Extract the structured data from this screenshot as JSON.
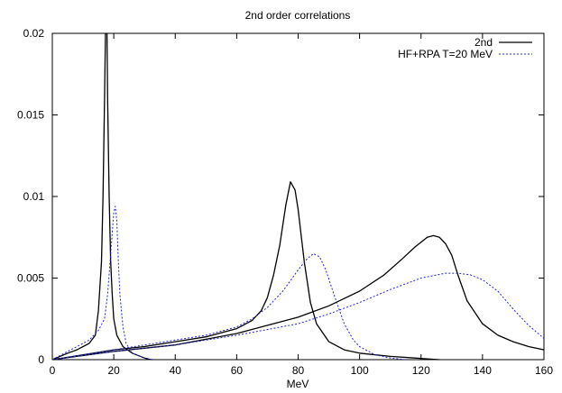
{
  "chart_data": {
    "type": "line",
    "title": "2nd order correlations",
    "xlabel": "MeV",
    "ylabel": "",
    "xlim": [
      0,
      160
    ],
    "ylim": [
      0,
      0.02
    ],
    "x_ticks": [
      0,
      20,
      40,
      60,
      80,
      100,
      120,
      140,
      160
    ],
    "y_ticks": [
      0,
      0.005,
      0.01,
      0.015,
      0.02
    ],
    "y_tick_labels": [
      "0",
      "0.005",
      "0.01",
      "0.015",
      "0.02"
    ],
    "grid": false,
    "legend_position": "top-right",
    "series": [
      {
        "name": "2nd",
        "color": "#000000",
        "style": "solid",
        "curves": [
          [
            [
              0,
              0
            ],
            [
              5,
              0.0004
            ],
            [
              8,
              0.0006
            ],
            [
              12,
              0.001
            ],
            [
              14,
              0.0015
            ],
            [
              15,
              0.003
            ],
            [
              16,
              0.006
            ],
            [
              16.5,
              0.01
            ],
            [
              17,
              0.016
            ],
            [
              17.3,
              0.02
            ],
            [
              17.8,
              0.02
            ],
            [
              18,
              0.016
            ],
            [
              18.5,
              0.01
            ],
            [
              19,
              0.006
            ],
            [
              19.5,
              0.004
            ],
            [
              20,
              0.0025
            ],
            [
              21,
              0.0015
            ],
            [
              23,
              0.0008
            ],
            [
              26,
              0.0004
            ],
            [
              30,
              0.0001
            ],
            [
              32,
              0
            ]
          ],
          [
            [
              0,
              0
            ],
            [
              10,
              0.0003
            ],
            [
              20,
              0.0006
            ],
            [
              30,
              0.0008
            ],
            [
              40,
              0.0011
            ],
            [
              50,
              0.0014
            ],
            [
              60,
              0.0019
            ],
            [
              65,
              0.0024
            ],
            [
              68,
              0.003
            ],
            [
              70,
              0.0038
            ],
            [
              72,
              0.0052
            ],
            [
              74,
              0.007
            ],
            [
              76,
              0.0095
            ],
            [
              77.5,
              0.0109
            ],
            [
              79,
              0.0104
            ],
            [
              80,
              0.0092
            ],
            [
              82,
              0.006
            ],
            [
              84,
              0.0035
            ],
            [
              86,
              0.0022
            ],
            [
              90,
              0.0011
            ],
            [
              95,
              0.0006
            ],
            [
              100,
              0.0004
            ],
            [
              110,
              0.0002
            ],
            [
              118,
              0.0001
            ],
            [
              122,
              5e-05
            ],
            [
              126,
              0
            ]
          ],
          [
            [
              0,
              0
            ],
            [
              20,
              0.0005
            ],
            [
              40,
              0.0009
            ],
            [
              60,
              0.0016
            ],
            [
              80,
              0.0026
            ],
            [
              90,
              0.0033
            ],
            [
              100,
              0.0042
            ],
            [
              108,
              0.0052
            ],
            [
              114,
              0.0062
            ],
            [
              118,
              0.0069
            ],
            [
              122,
              0.0075
            ],
            [
              124,
              0.0076
            ],
            [
              126,
              0.0075
            ],
            [
              128,
              0.0071
            ],
            [
              130,
              0.0064
            ],
            [
              132,
              0.0052
            ],
            [
              135,
              0.0036
            ],
            [
              140,
              0.0022
            ],
            [
              145,
              0.0015
            ],
            [
              150,
              0.0011
            ],
            [
              155,
              0.0008
            ],
            [
              160,
              0.0006
            ]
          ]
        ]
      },
      {
        "name": "HF+RPA T=20 MeV",
        "color": "#2323d6",
        "style": "dotted",
        "curves": [
          [
            [
              0,
              0
            ],
            [
              5,
              0.0005
            ],
            [
              8,
              0.0008
            ],
            [
              12,
              0.0012
            ],
            [
              15,
              0.0018
            ],
            [
              17,
              0.0025
            ],
            [
              18,
              0.004
            ],
            [
              19,
              0.0065
            ],
            [
              20,
              0.009
            ],
            [
              20.5,
              0.0094
            ],
            [
              21,
              0.0085
            ],
            [
              21.5,
              0.006
            ],
            [
              22,
              0.004
            ],
            [
              23,
              0.002
            ],
            [
              24,
              0.001
            ],
            [
              26,
              0.0004
            ],
            [
              30,
              0.0001
            ],
            [
              33,
              0
            ]
          ],
          [
            [
              0,
              0
            ],
            [
              10,
              0.0003
            ],
            [
              20,
              0.0006
            ],
            [
              30,
              0.0009
            ],
            [
              40,
              0.0012
            ],
            [
              50,
              0.0015
            ],
            [
              60,
              0.002
            ],
            [
              65,
              0.0025
            ],
            [
              70,
              0.0032
            ],
            [
              75,
              0.0042
            ],
            [
              80,
              0.0055
            ],
            [
              83,
              0.0062
            ],
            [
              85,
              0.0065
            ],
            [
              87,
              0.0063
            ],
            [
              89,
              0.0055
            ],
            [
              92,
              0.0038
            ],
            [
              95,
              0.0022
            ],
            [
              98,
              0.0012
            ],
            [
              100,
              0.0008
            ],
            [
              105,
              0.0003
            ],
            [
              110,
              0.0001
            ],
            [
              115,
              0
            ]
          ],
          [
            [
              0,
              0
            ],
            [
              20,
              0.0005
            ],
            [
              40,
              0.0009
            ],
            [
              60,
              0.0015
            ],
            [
              80,
              0.0022
            ],
            [
              90,
              0.0028
            ],
            [
              100,
              0.0035
            ],
            [
              110,
              0.0043
            ],
            [
              120,
              0.005
            ],
            [
              128,
              0.0053
            ],
            [
              132,
              0.0053
            ],
            [
              136,
              0.0052
            ],
            [
              140,
              0.0049
            ],
            [
              145,
              0.0042
            ],
            [
              150,
              0.0031
            ],
            [
              155,
              0.0021
            ],
            [
              160,
              0.0013
            ]
          ]
        ]
      }
    ]
  }
}
